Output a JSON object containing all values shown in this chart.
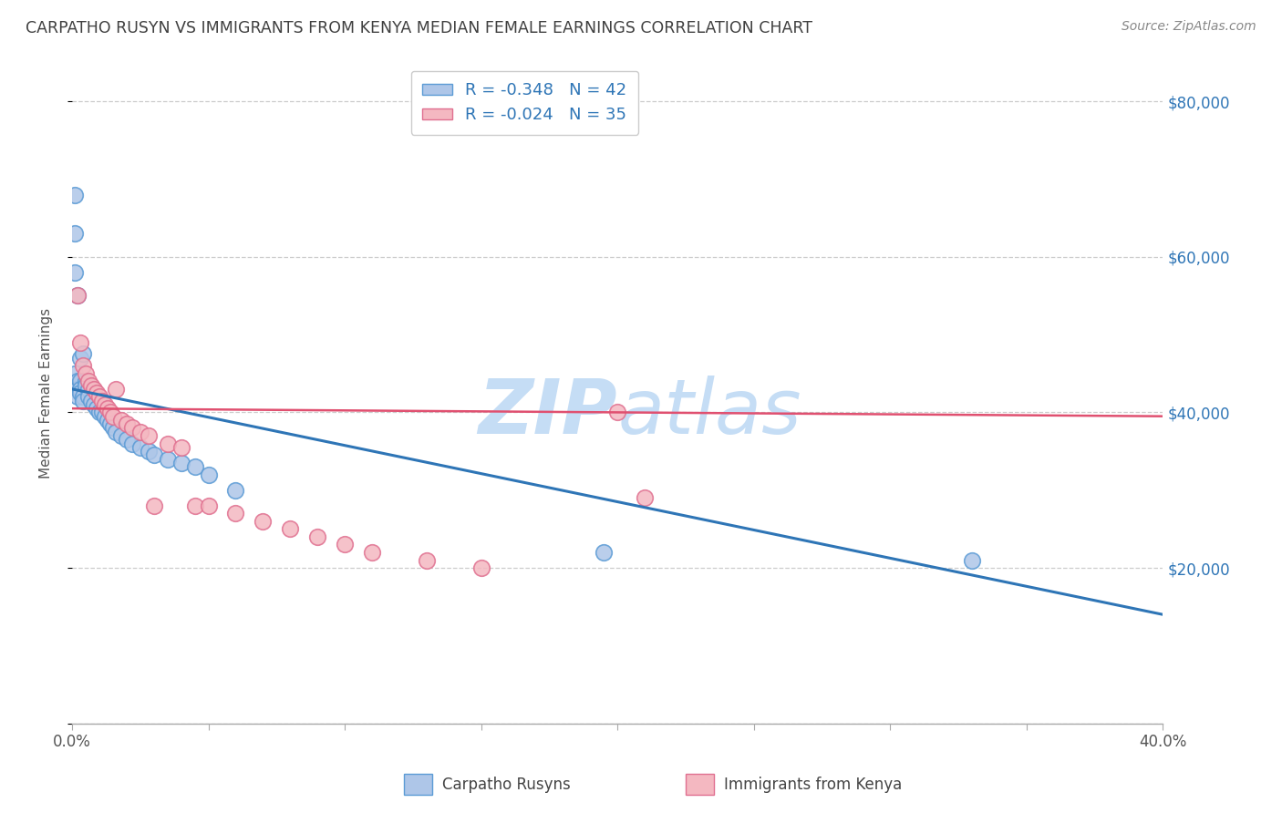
{
  "title": "CARPATHO RUSYN VS IMMIGRANTS FROM KENYA MEDIAN FEMALE EARNINGS CORRELATION CHART",
  "source": "Source: ZipAtlas.com",
  "ylabel": "Median Female Earnings",
  "xlim": [
    0.0,
    0.4
  ],
  "ylim": [
    0,
    85000
  ],
  "yticks": [
    0,
    20000,
    40000,
    60000,
    80000
  ],
  "ytick_labels": [
    "",
    "$20,000",
    "$40,000",
    "$60,000",
    "$80,000"
  ],
  "xticks": [
    0.0,
    0.05,
    0.1,
    0.15,
    0.2,
    0.25,
    0.3,
    0.35,
    0.4
  ],
  "xtick_labels": [
    "0.0%",
    "",
    "",
    "",
    "",
    "",
    "",
    "",
    "40.0%"
  ],
  "legend_r1": "R = -0.348",
  "legend_n1": "N = 42",
  "legend_r2": "R = -0.024",
  "legend_n2": "N = 35",
  "blue_scatter_x": [
    0.001,
    0.001,
    0.001,
    0.002,
    0.002,
    0.002,
    0.003,
    0.003,
    0.003,
    0.004,
    0.004,
    0.005,
    0.005,
    0.006,
    0.006,
    0.007,
    0.008,
    0.009,
    0.01,
    0.011,
    0.012,
    0.013,
    0.014,
    0.015,
    0.016,
    0.018,
    0.02,
    0.022,
    0.025,
    0.028,
    0.03,
    0.035,
    0.04,
    0.045,
    0.05,
    0.06,
    0.001,
    0.002,
    0.003,
    0.004,
    0.33,
    0.195
  ],
  "blue_scatter_y": [
    68000,
    63000,
    45000,
    44000,
    43000,
    42000,
    44000,
    43000,
    42500,
    42000,
    41500,
    44000,
    43500,
    43000,
    42000,
    41500,
    41000,
    40500,
    40000,
    40000,
    39500,
    39000,
    38500,
    38000,
    37500,
    37000,
    36500,
    36000,
    35500,
    35000,
    34500,
    34000,
    33500,
    33000,
    32000,
    30000,
    58000,
    55000,
    47000,
    47500,
    21000,
    22000
  ],
  "pink_scatter_x": [
    0.002,
    0.003,
    0.004,
    0.005,
    0.006,
    0.007,
    0.008,
    0.009,
    0.01,
    0.011,
    0.012,
    0.013,
    0.014,
    0.015,
    0.016,
    0.018,
    0.02,
    0.022,
    0.025,
    0.028,
    0.03,
    0.035,
    0.04,
    0.045,
    0.05,
    0.06,
    0.07,
    0.08,
    0.09,
    0.1,
    0.11,
    0.13,
    0.15,
    0.2,
    0.21
  ],
  "pink_scatter_y": [
    55000,
    49000,
    46000,
    45000,
    44000,
    43500,
    43000,
    42500,
    42000,
    41500,
    41000,
    40500,
    40000,
    39500,
    43000,
    39000,
    38500,
    38000,
    37500,
    37000,
    28000,
    36000,
    35500,
    28000,
    28000,
    27000,
    26000,
    25000,
    24000,
    23000,
    22000,
    21000,
    20000,
    40000,
    29000
  ],
  "blue_line_x": [
    0.0,
    0.4
  ],
  "blue_line_y": [
    43000,
    14000
  ],
  "pink_line_x": [
    0.0,
    0.4
  ],
  "pink_line_y": [
    40500,
    39500
  ],
  "blue_color": "#aec6e8",
  "blue_edge_color": "#5b9bd5",
  "pink_color": "#f4b8c1",
  "pink_edge_color": "#e07090",
  "blue_line_color": "#2e75b6",
  "pink_line_color": "#e05070",
  "background_color": "#ffffff",
  "grid_color": "#c0c0c0",
  "title_color": "#404040",
  "axis_label_color": "#555555",
  "right_ytick_color": "#2e75b6",
  "watermark_color": "#d0e4f5"
}
